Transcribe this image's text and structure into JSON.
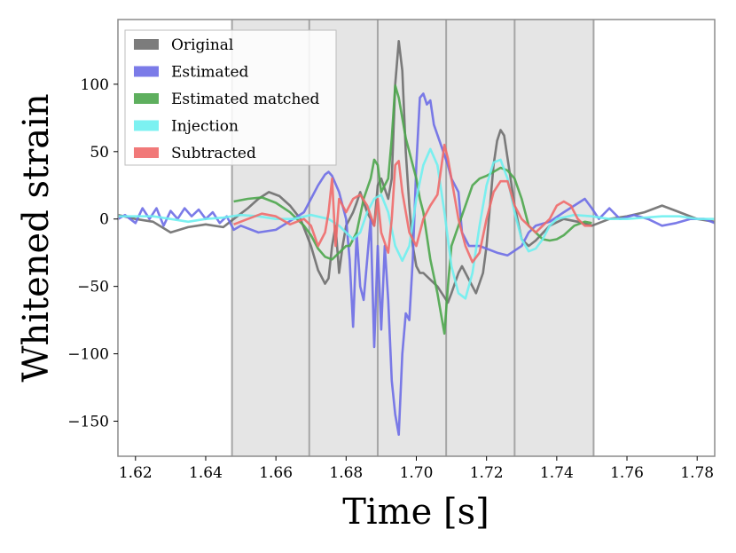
{
  "chart_data": {
    "type": "line",
    "xlabel": "Time [s]",
    "ylabel": "Whitened strain",
    "xlim": [
      1.615,
      1.785
    ],
    "ylim": [
      -176,
      148
    ],
    "x_ticks": [
      1.62,
      1.64,
      1.66,
      1.68,
      1.7,
      1.72,
      1.74,
      1.76,
      1.78
    ],
    "x_tick_labels": [
      "1.62",
      "1.64",
      "1.66",
      "1.68",
      "1.70",
      "1.72",
      "1.74",
      "1.76",
      "1.78"
    ],
    "y_ticks": [
      100,
      50,
      0,
      -50,
      -100,
      -150
    ],
    "y_tick_labels": [
      "100",
      "50",
      "0",
      "−50",
      "−100",
      "−150"
    ],
    "grid": false,
    "legend_position": "top-left",
    "shaded_segments": [
      [
        1.6475,
        1.6695
      ],
      [
        1.6695,
        1.689
      ],
      [
        1.689,
        1.7085
      ],
      [
        1.7085,
        1.728
      ],
      [
        1.728,
        1.7505
      ]
    ],
    "series": [
      {
        "name": "Original",
        "color": "#6e6e6e",
        "points": [
          [
            1.615,
            3
          ],
          [
            1.62,
            0
          ],
          [
            1.625,
            -2
          ],
          [
            1.63,
            -10
          ],
          [
            1.635,
            -6
          ],
          [
            1.64,
            -4
          ],
          [
            1.645,
            -6
          ],
          [
            1.648,
            0
          ],
          [
            1.652,
            8
          ],
          [
            1.655,
            15
          ],
          [
            1.658,
            20
          ],
          [
            1.661,
            17
          ],
          [
            1.664,
            10
          ],
          [
            1.667,
            0
          ],
          [
            1.67,
            -20
          ],
          [
            1.672,
            -38
          ],
          [
            1.674,
            -48
          ],
          [
            1.675,
            -44
          ],
          [
            1.676,
            -20
          ],
          [
            1.677,
            -5
          ],
          [
            1.678,
            -40
          ],
          [
            1.679,
            -20
          ],
          [
            1.68,
            -5
          ],
          [
            1.682,
            5
          ],
          [
            1.683,
            12
          ],
          [
            1.684,
            20
          ],
          [
            1.686,
            5
          ],
          [
            1.688,
            -5
          ],
          [
            1.689,
            25
          ],
          [
            1.69,
            30
          ],
          [
            1.692,
            15
          ],
          [
            1.693,
            30
          ],
          [
            1.694,
            100
          ],
          [
            1.695,
            132
          ],
          [
            1.696,
            110
          ],
          [
            1.697,
            50
          ],
          [
            1.698,
            10
          ],
          [
            1.699,
            -20
          ],
          [
            1.7,
            -35
          ],
          [
            1.701,
            -40
          ],
          [
            1.702,
            -40
          ],
          [
            1.704,
            -45
          ],
          [
            1.706,
            -50
          ],
          [
            1.708,
            -58
          ],
          [
            1.709,
            -62
          ],
          [
            1.71,
            -55
          ],
          [
            1.712,
            -40
          ],
          [
            1.713,
            -35
          ],
          [
            1.715,
            -45
          ],
          [
            1.717,
            -55
          ],
          [
            1.719,
            -40
          ],
          [
            1.72,
            -20
          ],
          [
            1.721,
            10
          ],
          [
            1.722,
            40
          ],
          [
            1.723,
            58
          ],
          [
            1.724,
            66
          ],
          [
            1.725,
            62
          ],
          [
            1.726,
            45
          ],
          [
            1.728,
            10
          ],
          [
            1.73,
            -15
          ],
          [
            1.732,
            -20
          ],
          [
            1.734,
            -16
          ],
          [
            1.738,
            -5
          ],
          [
            1.742,
            0
          ],
          [
            1.746,
            -2
          ],
          [
            1.75,
            -5
          ],
          [
            1.755,
            0
          ],
          [
            1.76,
            2
          ],
          [
            1.765,
            5
          ],
          [
            1.77,
            10
          ],
          [
            1.775,
            5
          ],
          [
            1.78,
            0
          ],
          [
            1.785,
            -2
          ]
        ]
      },
      {
        "name": "Estimated",
        "color": "#6d6de5",
        "points": [
          [
            1.615,
            0
          ],
          [
            1.617,
            3
          ],
          [
            1.62,
            -3
          ],
          [
            1.622,
            8
          ],
          [
            1.624,
            0
          ],
          [
            1.626,
            8
          ],
          [
            1.628,
            -5
          ],
          [
            1.63,
            6
          ],
          [
            1.632,
            0
          ],
          [
            1.634,
            8
          ],
          [
            1.636,
            2
          ],
          [
            1.638,
            7
          ],
          [
            1.64,
            0
          ],
          [
            1.642,
            5
          ],
          [
            1.644,
            -3
          ],
          [
            1.646,
            2
          ],
          [
            1.648,
            -8
          ],
          [
            1.65,
            -5
          ],
          [
            1.655,
            -10
          ],
          [
            1.66,
            -8
          ],
          [
            1.665,
            0
          ],
          [
            1.668,
            5
          ],
          [
            1.67,
            15
          ],
          [
            1.672,
            25
          ],
          [
            1.674,
            33
          ],
          [
            1.675,
            35
          ],
          [
            1.676,
            32
          ],
          [
            1.678,
            20
          ],
          [
            1.68,
            0
          ],
          [
            1.681,
            -30
          ],
          [
            1.682,
            -80
          ],
          [
            1.683,
            -10
          ],
          [
            1.684,
            -50
          ],
          [
            1.685,
            -60
          ],
          [
            1.686,
            -30
          ],
          [
            1.687,
            0
          ],
          [
            1.688,
            -95
          ],
          [
            1.689,
            -20
          ],
          [
            1.69,
            -82
          ],
          [
            1.691,
            -20
          ],
          [
            1.692,
            -60
          ],
          [
            1.693,
            -120
          ],
          [
            1.694,
            -145
          ],
          [
            1.695,
            -160
          ],
          [
            1.696,
            -100
          ],
          [
            1.697,
            -70
          ],
          [
            1.698,
            -75
          ],
          [
            1.699,
            -30
          ],
          [
            1.7,
            40
          ],
          [
            1.701,
            90
          ],
          [
            1.702,
            93
          ],
          [
            1.703,
            85
          ],
          [
            1.704,
            88
          ],
          [
            1.705,
            70
          ],
          [
            1.707,
            55
          ],
          [
            1.709,
            40
          ],
          [
            1.71,
            30
          ],
          [
            1.712,
            20
          ],
          [
            1.713,
            -10
          ],
          [
            1.715,
            -20
          ],
          [
            1.718,
            -20
          ],
          [
            1.72,
            -22
          ],
          [
            1.723,
            -25
          ],
          [
            1.726,
            -27
          ],
          [
            1.73,
            -20
          ],
          [
            1.732,
            -10
          ],
          [
            1.734,
            -5
          ],
          [
            1.738,
            -2
          ],
          [
            1.742,
            5
          ],
          [
            1.745,
            10
          ],
          [
            1.748,
            15
          ],
          [
            1.75,
            8
          ],
          [
            1.752,
            0
          ],
          [
            1.755,
            8
          ],
          [
            1.758,
            0
          ],
          [
            1.762,
            3
          ],
          [
            1.766,
            0
          ],
          [
            1.77,
            -5
          ],
          [
            1.774,
            -3
          ],
          [
            1.778,
            0
          ],
          [
            1.782,
            0
          ],
          [
            1.785,
            -3
          ]
        ]
      },
      {
        "name": "Estimated matched",
        "color": "#4ca64c",
        "points": [
          [
            1.648,
            13
          ],
          [
            1.652,
            15
          ],
          [
            1.656,
            16
          ],
          [
            1.66,
            12
          ],
          [
            1.664,
            5
          ],
          [
            1.668,
            -5
          ],
          [
            1.67,
            -12
          ],
          [
            1.672,
            -22
          ],
          [
            1.674,
            -28
          ],
          [
            1.676,
            -30
          ],
          [
            1.678,
            -25
          ],
          [
            1.68,
            -20
          ],
          [
            1.681,
            -20
          ],
          [
            1.683,
            -10
          ],
          [
            1.685,
            15
          ],
          [
            1.687,
            30
          ],
          [
            1.688,
            44
          ],
          [
            1.689,
            40
          ],
          [
            1.69,
            20
          ],
          [
            1.692,
            30
          ],
          [
            1.693,
            60
          ],
          [
            1.694,
            99
          ],
          [
            1.695,
            90
          ],
          [
            1.697,
            60
          ],
          [
            1.699,
            40
          ],
          [
            1.7,
            30
          ],
          [
            1.701,
            15
          ],
          [
            1.702,
            5
          ],
          [
            1.704,
            -30
          ],
          [
            1.706,
            -55
          ],
          [
            1.707,
            -70
          ],
          [
            1.708,
            -85
          ],
          [
            1.709,
            -50
          ],
          [
            1.71,
            -20
          ],
          [
            1.712,
            -5
          ],
          [
            1.714,
            10
          ],
          [
            1.716,
            25
          ],
          [
            1.718,
            30
          ],
          [
            1.72,
            32
          ],
          [
            1.722,
            35
          ],
          [
            1.724,
            38
          ],
          [
            1.726,
            36
          ],
          [
            1.728,
            30
          ],
          [
            1.73,
            15
          ],
          [
            1.732,
            -5
          ],
          [
            1.734,
            -10
          ],
          [
            1.736,
            -15
          ],
          [
            1.738,
            -16
          ],
          [
            1.74,
            -15
          ],
          [
            1.742,
            -12
          ],
          [
            1.745,
            -5
          ],
          [
            1.748,
            -2
          ],
          [
            1.75,
            -3
          ]
        ]
      },
      {
        "name": "Injection",
        "color": "#6ef0f0",
        "points": [
          [
            1.615,
            2
          ],
          [
            1.62,
            2
          ],
          [
            1.625,
            2
          ],
          [
            1.63,
            0
          ],
          [
            1.635,
            -2
          ],
          [
            1.64,
            0
          ],
          [
            1.645,
            1
          ],
          [
            1.65,
            3
          ],
          [
            1.655,
            2
          ],
          [
            1.66,
            0
          ],
          [
            1.665,
            0
          ],
          [
            1.67,
            3
          ],
          [
            1.675,
            0
          ],
          [
            1.678,
            -5
          ],
          [
            1.68,
            -10
          ],
          [
            1.682,
            -15
          ],
          [
            1.684,
            -10
          ],
          [
            1.686,
            5
          ],
          [
            1.688,
            15
          ],
          [
            1.69,
            18
          ],
          [
            1.692,
            5
          ],
          [
            1.694,
            -20
          ],
          [
            1.696,
            -31
          ],
          [
            1.698,
            -20
          ],
          [
            1.7,
            15
          ],
          [
            1.702,
            40
          ],
          [
            1.704,
            52
          ],
          [
            1.706,
            40
          ],
          [
            1.708,
            5
          ],
          [
            1.71,
            -35
          ],
          [
            1.712,
            -55
          ],
          [
            1.714,
            -59
          ],
          [
            1.716,
            -40
          ],
          [
            1.718,
            -5
          ],
          [
            1.72,
            25
          ],
          [
            1.722,
            42
          ],
          [
            1.724,
            44
          ],
          [
            1.726,
            30
          ],
          [
            1.728,
            5
          ],
          [
            1.73,
            -15
          ],
          [
            1.732,
            -24
          ],
          [
            1.734,
            -22
          ],
          [
            1.736,
            -15
          ],
          [
            1.738,
            -5
          ],
          [
            1.74,
            0
          ],
          [
            1.745,
            3
          ],
          [
            1.75,
            2
          ],
          [
            1.755,
            0
          ],
          [
            1.76,
            0
          ],
          [
            1.765,
            1
          ],
          [
            1.77,
            2
          ],
          [
            1.775,
            2
          ],
          [
            1.78,
            0
          ],
          [
            1.785,
            0
          ]
        ]
      },
      {
        "name": "Subtracted",
        "color": "#ef6a6a",
        "points": [
          [
            1.648,
            -4
          ],
          [
            1.652,
            0
          ],
          [
            1.656,
            4
          ],
          [
            1.66,
            2
          ],
          [
            1.664,
            -4
          ],
          [
            1.668,
            0
          ],
          [
            1.67,
            -5
          ],
          [
            1.672,
            -20
          ],
          [
            1.674,
            -10
          ],
          [
            1.675,
            5
          ],
          [
            1.676,
            30
          ],
          [
            1.677,
            -20
          ],
          [
            1.678,
            15
          ],
          [
            1.68,
            5
          ],
          [
            1.682,
            15
          ],
          [
            1.684,
            18
          ],
          [
            1.686,
            10
          ],
          [
            1.688,
            -5
          ],
          [
            1.689,
            15
          ],
          [
            1.69,
            -10
          ],
          [
            1.692,
            -25
          ],
          [
            1.693,
            0
          ],
          [
            1.694,
            40
          ],
          [
            1.695,
            43
          ],
          [
            1.696,
            20
          ],
          [
            1.698,
            -10
          ],
          [
            1.7,
            -20
          ],
          [
            1.702,
            0
          ],
          [
            1.704,
            10
          ],
          [
            1.706,
            18
          ],
          [
            1.708,
            55
          ],
          [
            1.709,
            45
          ],
          [
            1.71,
            30
          ],
          [
            1.712,
            0
          ],
          [
            1.714,
            -20
          ],
          [
            1.716,
            -32
          ],
          [
            1.718,
            -25
          ],
          [
            1.72,
            0
          ],
          [
            1.722,
            20
          ],
          [
            1.724,
            28
          ],
          [
            1.726,
            28
          ],
          [
            1.728,
            10
          ],
          [
            1.73,
            0
          ],
          [
            1.734,
            -10
          ],
          [
            1.738,
            0
          ],
          [
            1.74,
            10
          ],
          [
            1.742,
            13
          ],
          [
            1.744,
            10
          ],
          [
            1.746,
            0
          ],
          [
            1.748,
            -5
          ],
          [
            1.75,
            -5
          ]
        ]
      }
    ]
  }
}
